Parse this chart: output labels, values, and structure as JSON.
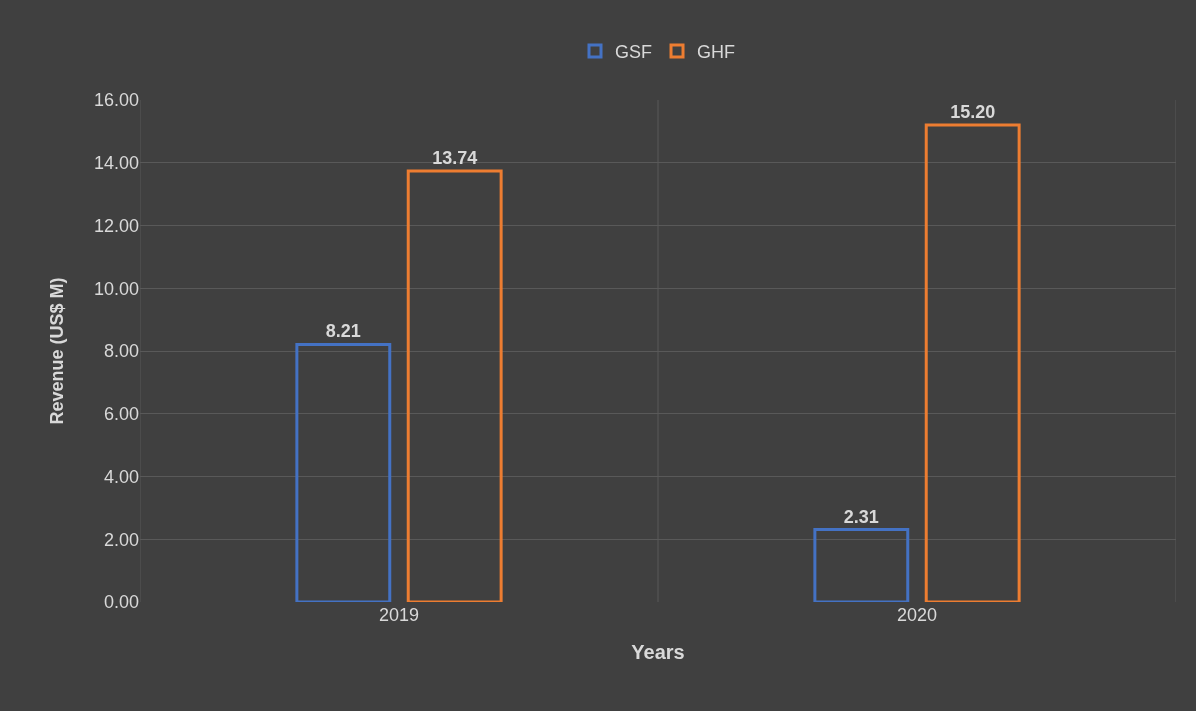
{
  "chart_data": {
    "type": "bar",
    "xlabel": "Years",
    "ylabel": "Revenue (US$ M)",
    "categories": [
      "2019",
      "2020"
    ],
    "series": [
      {
        "name": "GSF",
        "color": "#4472c4",
        "values": [
          8.21,
          2.31
        ],
        "value_labels": [
          "8.21",
          "2.31"
        ]
      },
      {
        "name": "GHF",
        "color": "#ed7d31",
        "values": [
          13.74,
          15.2
        ],
        "value_labels": [
          "13.74",
          "15.20"
        ]
      }
    ],
    "ylim": [
      0,
      16
    ],
    "yticks": [
      {
        "value": 0,
        "label": "0.00"
      },
      {
        "value": 2,
        "label": "2.00"
      },
      {
        "value": 4,
        "label": "4.00"
      },
      {
        "value": 6,
        "label": "6.00"
      },
      {
        "value": 8,
        "label": "8.00"
      },
      {
        "value": 10,
        "label": "10.00"
      },
      {
        "value": 12,
        "label": "12.00"
      },
      {
        "value": 14,
        "label": "14.00"
      },
      {
        "value": 16,
        "label": "16.00"
      }
    ],
    "grid": true,
    "legend": "top"
  }
}
